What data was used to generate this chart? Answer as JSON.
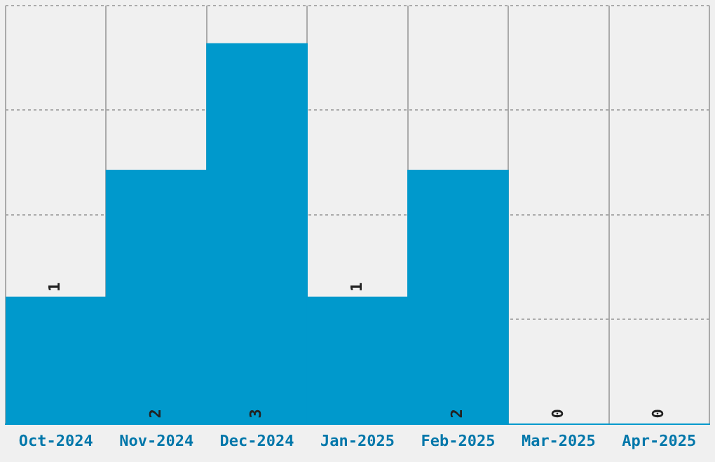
{
  "chart_data": {
    "type": "bar",
    "categories": [
      "Oct-2024",
      "Nov-2024",
      "Dec-2024",
      "Jan-2025",
      "Feb-2025",
      "Mar-2025",
      "Apr-2025"
    ],
    "values": [
      1,
      2,
      3,
      1,
      2,
      0,
      0
    ],
    "color": "#0099cc",
    "ylim": [
      0,
      3.3
    ],
    "yticks": [
      {
        "value": 0,
        "label": null
      },
      {
        "value": 0.825,
        "label": null
      },
      {
        "value": 1.65,
        "label": null
      },
      {
        "value": 2.475,
        "label": null
      },
      {
        "value": 3.3,
        "label": null
      }
    ],
    "grid": true,
    "data_labels": true,
    "tick_labels": "x"
  }
}
